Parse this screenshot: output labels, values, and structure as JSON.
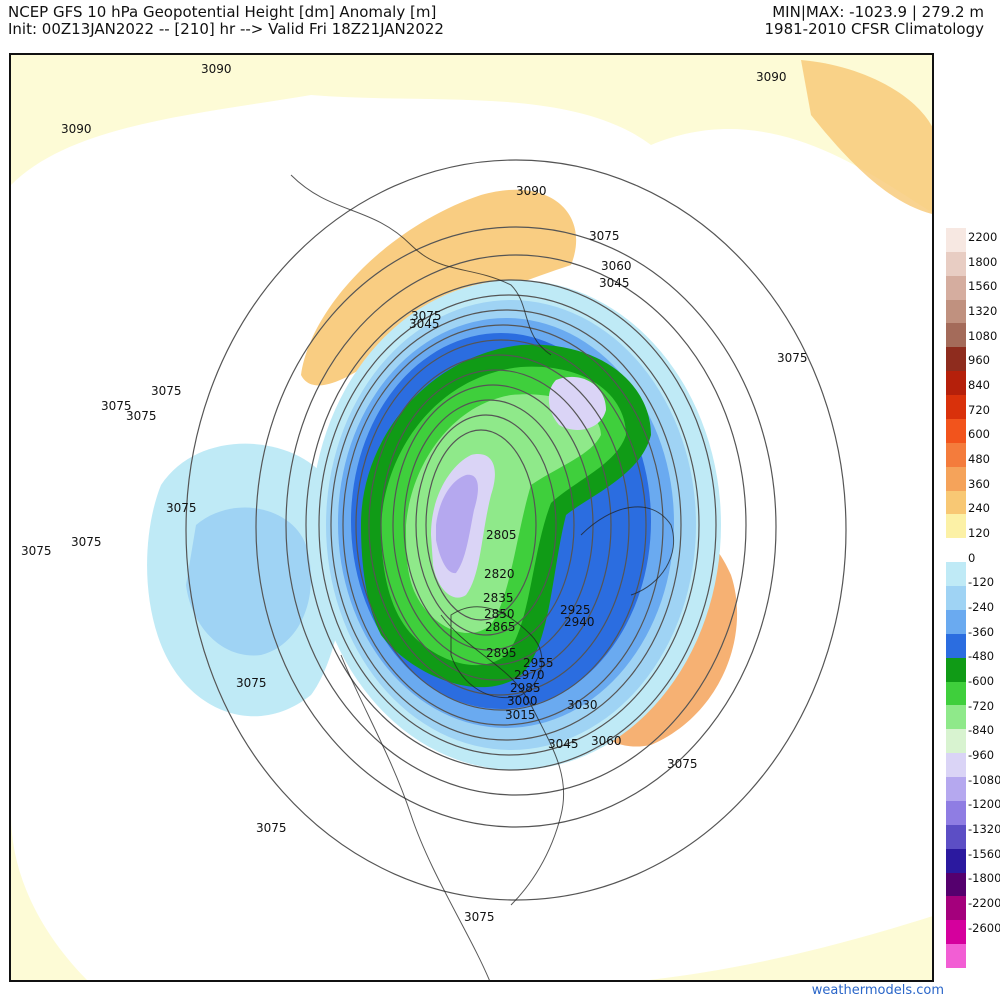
{
  "header": {
    "title_line1": "NCEP GFS 10 hPa Geopotential Height [dm] Anomaly [m]",
    "title_line2": "Init: 00Z13JAN2022 -- [210] hr --> Valid Fri 18Z21JAN2022",
    "minmax": "MIN|MAX: -1023.9 | 279.2 m",
    "climatology": "1981-2010 CFSR Climatology"
  },
  "colorbar": {
    "ticks": [
      "2200",
      "1800",
      "1560",
      "1320",
      "1080",
      "960",
      "840",
      "720",
      "600",
      "480",
      "360",
      "240",
      "120",
      "0",
      "-120",
      "-240",
      "-360",
      "-480",
      "-600",
      "-720",
      "-840",
      "-960",
      "-1080",
      "-1200",
      "-1320",
      "-1560",
      "-1800",
      "-2200",
      "-2600"
    ],
    "colors": [
      "#f7e8e2",
      "#e8cdc3",
      "#d5ad9f",
      "#c0917f",
      "#a46b5a",
      "#8e2c1e",
      "#b5200b",
      "#d9310b",
      "#f2541c",
      "#f47c3c",
      "#f5a35a",
      "#f8c874",
      "#fcf1a6",
      "#ffffff",
      "#bfeaf6",
      "#9fd3f4",
      "#6aaaf0",
      "#2b6de0",
      "#109b16",
      "#3fcf3c",
      "#8fe98a",
      "#d8f3d0",
      "#dad4f6",
      "#b5a8ef",
      "#8f7de3",
      "#5c4ec5",
      "#2b199f",
      "#55006e",
      "#a4007c",
      "#d5009d",
      "#f25ed4"
    ]
  },
  "map": {
    "contour_labels": [
      "3090",
      "3090",
      "3090",
      "3090",
      "3075",
      "3075",
      "3075",
      "3075",
      "3075",
      "3075",
      "3075",
      "3075",
      "3075",
      "3075",
      "3075",
      "3075",
      "3075",
      "3060",
      "3060",
      "3045",
      "3045",
      "3045",
      "3030",
      "3015",
      "3000",
      "2985",
      "2970",
      "2955",
      "2940",
      "2925",
      "2895",
      "2865",
      "2850",
      "2835",
      "2820",
      "2805"
    ]
  },
  "credit": "weathermodels.com"
}
